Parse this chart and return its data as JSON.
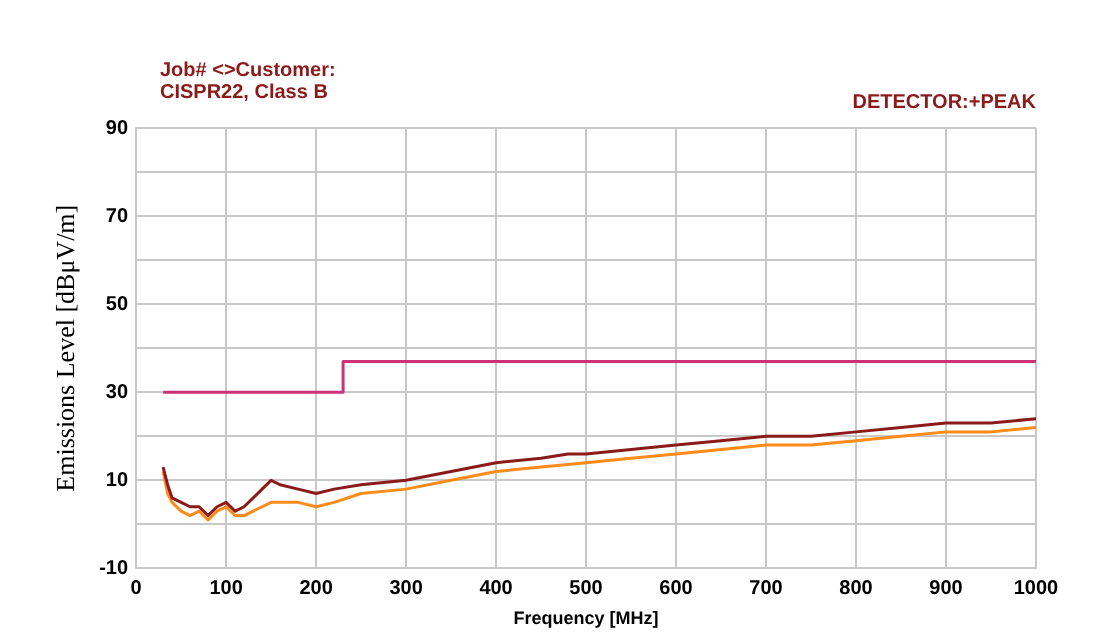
{
  "chart_data": {
    "type": "line",
    "title": "Job# <>Customer:",
    "subtitle": "CISPR22, Class B",
    "annotations": [
      "DETECTOR:+PEAK"
    ],
    "xlabel": "Frequency [MHz]",
    "ylabel": "Emissions Level [dBμV/m]",
    "xlim": [
      0,
      1000
    ],
    "xticks": [
      0,
      100,
      200,
      300,
      400,
      500,
      600,
      700,
      800,
      900,
      1000
    ],
    "ylim": [
      -10,
      90
    ],
    "yticks": [
      -10,
      {
        "value": 0,
        "label": null
      },
      10,
      {
        "value": 20,
        "label": null
      },
      30,
      {
        "value": 40,
        "label": null
      },
      50,
      {
        "value": 60,
        "label": null
      },
      70,
      {
        "value": 80,
        "label": null
      },
      90
    ],
    "grid": true,
    "legend": false,
    "marker": "none",
    "series": [
      {
        "color": "#cc3377",
        "x": [
          30,
          230,
          230,
          1000
        ],
        "values": [
          30,
          30,
          37,
          37
        ]
      },
      {
        "color": "#8b1a1a",
        "x": [
          30,
          35,
          40,
          50,
          60,
          70,
          80,
          90,
          100,
          110,
          120,
          140,
          150,
          160,
          180,
          200,
          220,
          250,
          300,
          350,
          400,
          450,
          480,
          500,
          550,
          600,
          650,
          700,
          750,
          800,
          850,
          900,
          950,
          1000
        ],
        "values": [
          13,
          9,
          6,
          5,
          4,
          4,
          2,
          4,
          5,
          3,
          4,
          8,
          10,
          9,
          8,
          7,
          8,
          9,
          10,
          12,
          14,
          15,
          16,
          16,
          17,
          18,
          19,
          20,
          20,
          21,
          22,
          23,
          23,
          24
        ]
      },
      {
        "color": "#ff8c1a",
        "x": [
          30,
          35,
          40,
          50,
          60,
          70,
          80,
          90,
          100,
          110,
          120,
          140,
          150,
          160,
          180,
          200,
          220,
          250,
          300,
          350,
          400,
          450,
          500,
          550,
          600,
          650,
          700,
          750,
          800,
          850,
          900,
          950,
          1000
        ],
        "values": [
          12,
          7,
          5,
          3,
          2,
          3,
          1,
          3,
          4,
          2,
          2,
          4,
          5,
          5,
          5,
          4,
          5,
          7,
          8,
          10,
          12,
          13,
          14,
          15,
          16,
          17,
          18,
          18,
          19,
          20,
          21,
          21,
          22
        ]
      }
    ]
  }
}
